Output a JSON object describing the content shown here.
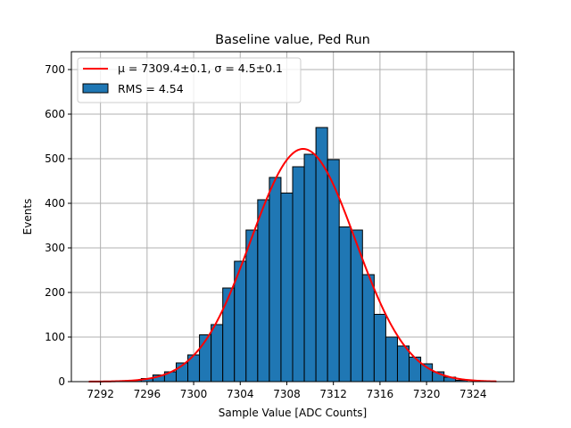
{
  "chart_data": {
    "type": "bar",
    "title": "Baseline value, Ped Run",
    "xlabel": "Sample Value [ADC Counts]",
    "ylabel": "Events",
    "xlim": [
      7289.5,
      7327.5
    ],
    "ylim": [
      0,
      740
    ],
    "xticks": [
      7292,
      7296,
      7300,
      7304,
      7308,
      7312,
      7316,
      7320,
      7324
    ],
    "yticks": [
      0,
      100,
      200,
      300,
      400,
      500,
      600,
      700
    ],
    "grid": true,
    "legend_position": "top-left",
    "bin_width": 1,
    "bins": [
      {
        "x": 7292,
        "count": 1
      },
      {
        "x": 7293,
        "count": 1
      },
      {
        "x": 7294,
        "count": 2
      },
      {
        "x": 7295,
        "count": 3
      },
      {
        "x": 7296,
        "count": 7
      },
      {
        "x": 7297,
        "count": 15
      },
      {
        "x": 7298,
        "count": 22
      },
      {
        "x": 7299,
        "count": 42
      },
      {
        "x": 7300,
        "count": 60
      },
      {
        "x": 7301,
        "count": 105
      },
      {
        "x": 7302,
        "count": 128
      },
      {
        "x": 7303,
        "count": 210
      },
      {
        "x": 7304,
        "count": 270
      },
      {
        "x": 7305,
        "count": 340
      },
      {
        "x": 7306,
        "count": 408
      },
      {
        "x": 7307,
        "count": 458
      },
      {
        "x": 7308,
        "count": 423
      },
      {
        "x": 7309,
        "count": 482
      },
      {
        "x": 7310,
        "count": 510
      },
      {
        "x": 7311,
        "count": 570
      },
      {
        "x": 7312,
        "count": 498
      },
      {
        "x": 7313,
        "count": 347
      },
      {
        "x": 7314,
        "count": 340
      },
      {
        "x": 7315,
        "count": 240
      },
      {
        "x": 7316,
        "count": 151
      },
      {
        "x": 7317,
        "count": 100
      },
      {
        "x": 7318,
        "count": 80
      },
      {
        "x": 7319,
        "count": 55
      },
      {
        "x": 7320,
        "count": 40
      },
      {
        "x": 7321,
        "count": 22
      },
      {
        "x": 7322,
        "count": 10
      },
      {
        "x": 7323,
        "count": 3
      }
    ],
    "fit": {
      "type": "gaussian",
      "mu": 7309.4,
      "sigma": 4.5,
      "amplitude": 522,
      "x_range": [
        7291,
        7326
      ]
    },
    "series": [
      {
        "name": "$\\mu = 7309.4 \\pm 0.1$, $\\sigma = 4.5 \\pm 0.1$",
        "kind": "line",
        "color": "#ff0000"
      },
      {
        "name": "RMS = 4.54",
        "kind": "bar",
        "color": "#1f77b4"
      }
    ],
    "legend_display": {
      "fit_mu": "μ = 7309.4±0.1",
      "fit_sep": ", ",
      "fit_sigma": "σ = 4.5±0.1",
      "hist": "RMS = 4.54"
    }
  }
}
